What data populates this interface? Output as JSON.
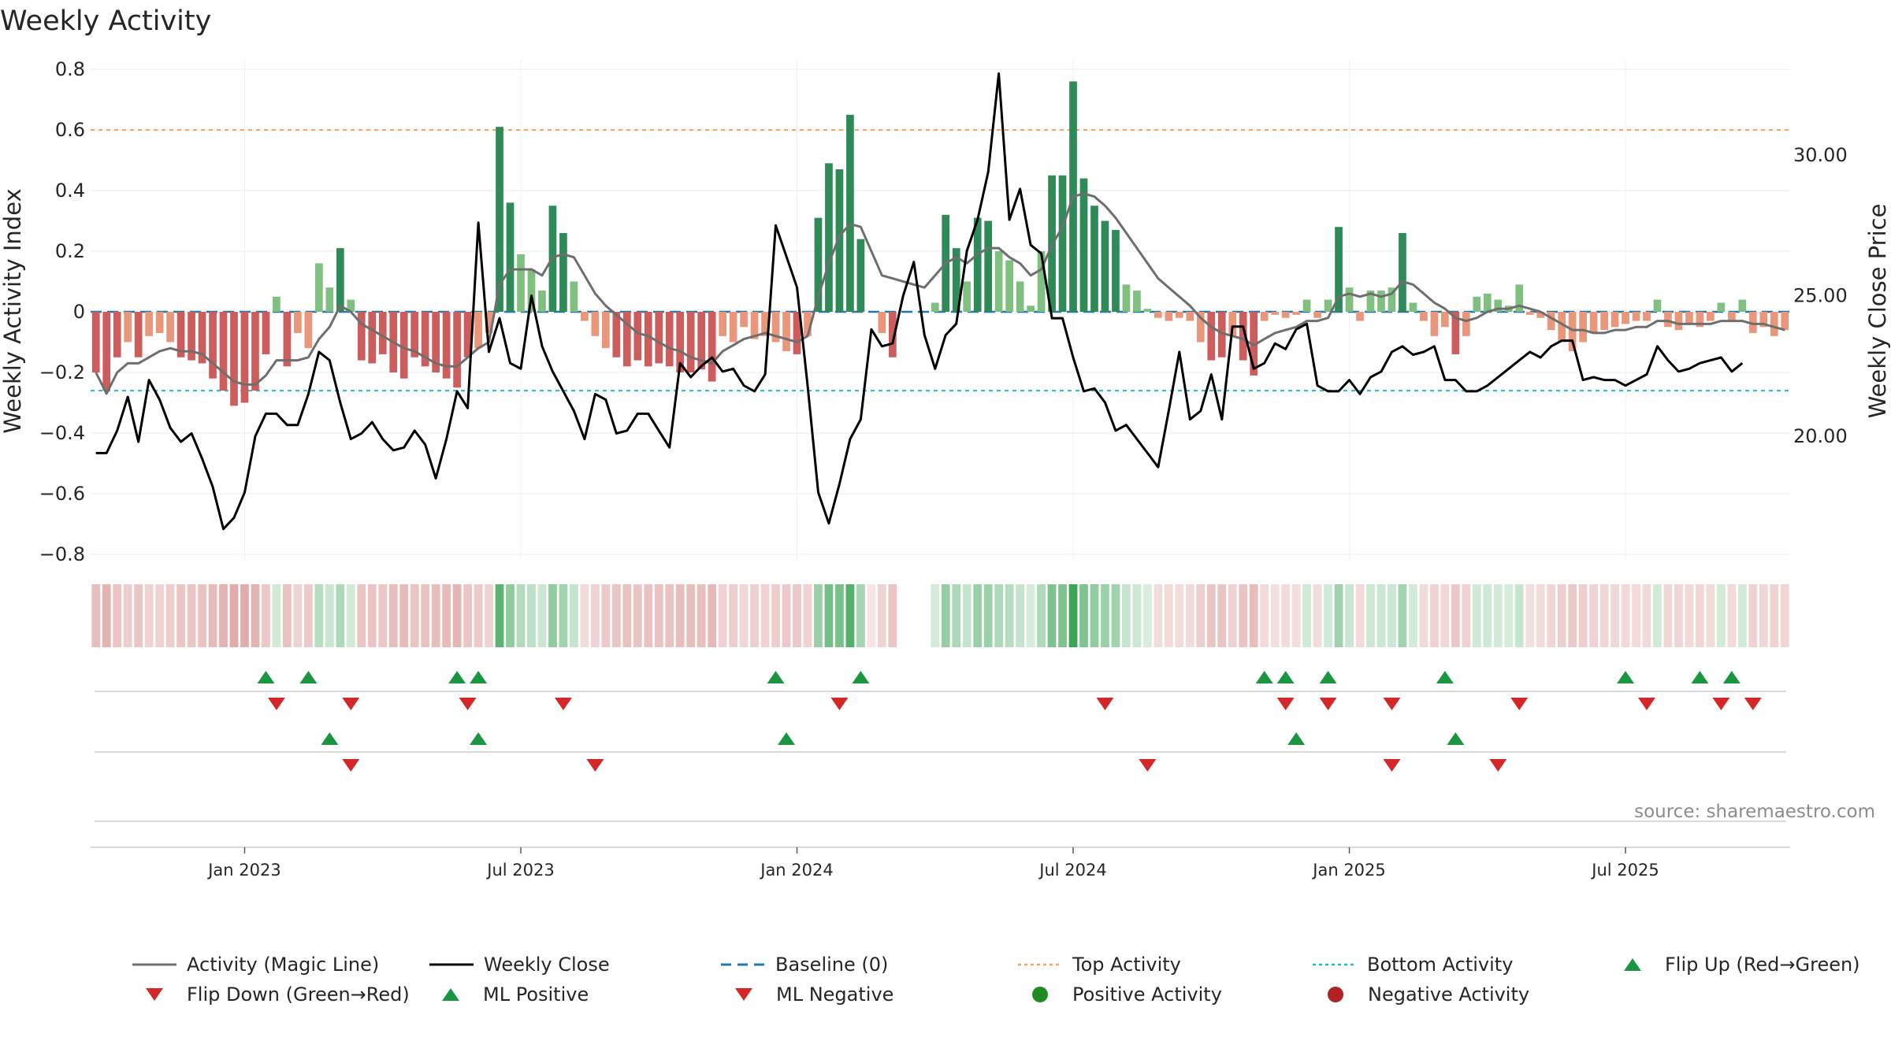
{
  "chart_data": {
    "type": "bar+line",
    "title": "Weekly Activity",
    "ylabel": "Weekly Activity Index",
    "ylabel_right": "Weekly Close Price",
    "ylim": [
      -0.9,
      0.8
    ],
    "ylim_right": [
      14.0,
      33.5
    ],
    "yticks": [
      "0.8",
      "0.6",
      "0.4",
      "0.2",
      "0",
      "−0.2",
      "−0.4",
      "−0.6",
      "−0.8"
    ],
    "yticks_right": [
      "30.00",
      "25.00",
      "20.00"
    ],
    "xtick_labels": [
      "Jan 2023",
      "Jul 2023",
      "Jan 2024",
      "Jul 2024",
      "Jan 2025",
      "Jul 2025"
    ],
    "baseline": 0,
    "top_activity": 0.6,
    "bottom_activity": -0.26,
    "source": "source: sharemaestro.com",
    "colors": {
      "strong_green": "#2e8b57",
      "light_green": "#7fbf7f",
      "strong_red": "#cd5c5c",
      "light_red": "#e9967a",
      "magic_line": "#6e6e6e",
      "close": "#000000",
      "baseline": "#1f77b4",
      "top": "#f4a460",
      "bottom": "#17becf",
      "up_marker": "#1a9641",
      "down_marker": "#d62728"
    },
    "activity": [
      -0.2,
      -0.26,
      -0.15,
      -0.1,
      -0.15,
      -0.08,
      -0.07,
      -0.1,
      -0.15,
      -0.16,
      -0.17,
      -0.22,
      -0.26,
      -0.31,
      -0.3,
      -0.26,
      -0.14,
      0.05,
      -0.18,
      -0.07,
      -0.12,
      0.16,
      0.08,
      0.21,
      0.04,
      -0.16,
      -0.17,
      -0.14,
      -0.2,
      -0.22,
      -0.15,
      -0.18,
      -0.2,
      -0.22,
      -0.25,
      -0.15,
      -0.12,
      -0.07,
      0.61,
      0.36,
      0.19,
      0.14,
      0.07,
      0.35,
      0.26,
      0.1,
      -0.03,
      -0.08,
      -0.12,
      -0.15,
      -0.18,
      -0.16,
      -0.18,
      -0.17,
      -0.18,
      -0.2,
      -0.2,
      -0.19,
      -0.23,
      -0.08,
      -0.1,
      -0.05,
      -0.09,
      -0.08,
      -0.1,
      -0.13,
      -0.14,
      -0.08,
      0.31,
      0.49,
      0.47,
      0.65,
      0.24,
      0,
      -0.07,
      -0.15,
      null,
      null,
      null,
      0.03,
      0.32,
      0.21,
      0.1,
      0.31,
      0.3,
      0.2,
      0.17,
      0.1,
      0.02,
      0.2,
      0.45,
      0.45,
      0.76,
      0.44,
      0.35,
      0.3,
      0.27,
      0.09,
      0.07,
      0.01,
      -0.02,
      -0.03,
      -0.02,
      -0.03,
      -0.1,
      -0.16,
      -0.15,
      -0.08,
      -0.16,
      -0.21,
      -0.03,
      -0.01,
      -0.02,
      -0.01,
      0.04,
      -0.02,
      0.04,
      0.28,
      0.08,
      -0.03,
      0.07,
      0.07,
      0.08,
      0.26,
      0.03,
      -0.03,
      -0.08,
      -0.05,
      -0.14,
      -0.08,
      0.05,
      0.06,
      0.04,
      0.02,
      0.09,
      -0.01,
      -0.02,
      -0.06,
      -0.1,
      -0.13,
      -0.1,
      -0.07,
      -0.06,
      -0.05,
      -0.04,
      -0.03,
      -0.03,
      0.04,
      -0.05,
      -0.06,
      -0.04,
      -0.05,
      -0.03,
      0.03,
      -0.03,
      0.04,
      -0.07,
      -0.05,
      -0.08,
      -0.06
    ],
    "magic_line": [
      -0.2,
      -0.27,
      -0.2,
      -0.17,
      -0.17,
      -0.15,
      -0.13,
      -0.12,
      -0.13,
      -0.13,
      -0.14,
      -0.17,
      -0.2,
      -0.23,
      -0.24,
      -0.24,
      -0.21,
      -0.16,
      -0.16,
      -0.16,
      -0.15,
      -0.09,
      -0.05,
      0.02,
      0.0,
      -0.04,
      -0.06,
      -0.08,
      -0.1,
      -0.12,
      -0.13,
      -0.15,
      -0.17,
      -0.18,
      -0.18,
      -0.15,
      -0.12,
      -0.1,
      0.09,
      0.14,
      0.14,
      0.14,
      0.12,
      0.18,
      0.19,
      0.18,
      0.12,
      0.06,
      0.02,
      -0.01,
      -0.04,
      -0.07,
      -0.08,
      -0.1,
      -0.12,
      -0.13,
      -0.15,
      -0.16,
      -0.17,
      -0.13,
      -0.11,
      -0.09,
      -0.08,
      -0.07,
      -0.08,
      -0.09,
      -0.1,
      -0.08,
      0.05,
      0.16,
      0.25,
      0.29,
      0.28,
      0.2,
      0.12,
      0.11,
      0.1,
      0.09,
      0.08,
      0.12,
      0.16,
      0.18,
      0.16,
      0.19,
      0.21,
      0.21,
      0.18,
      0.16,
      0.12,
      0.14,
      0.22,
      0.28,
      0.38,
      0.39,
      0.38,
      0.35,
      0.31,
      0.26,
      0.21,
      0.16,
      0.11,
      0.08,
      0.05,
      0.02,
      -0.02,
      -0.05,
      -0.07,
      -0.08,
      -0.09,
      -0.11,
      -0.09,
      -0.07,
      -0.06,
      -0.05,
      -0.03,
      -0.03,
      -0.02,
      0.05,
      0.06,
      0.05,
      0.06,
      0.05,
      0.06,
      0.1,
      0.09,
      0.06,
      0.03,
      0.01,
      -0.02,
      -0.03,
      -0.02,
      0.0,
      0.01,
      0.01,
      0.02,
      0.01,
      0.0,
      -0.02,
      -0.04,
      -0.06,
      -0.06,
      -0.07,
      -0.07,
      -0.06,
      -0.06,
      -0.05,
      -0.05,
      -0.03,
      -0.03,
      -0.04,
      -0.04,
      -0.04,
      -0.04,
      -0.03,
      -0.03,
      -0.03,
      -0.04,
      -0.04,
      -0.05,
      -0.06
    ],
    "close": [
      19.4,
      19.4,
      20.2,
      21.4,
      19.8,
      22.0,
      21.3,
      20.3,
      19.8,
      20.1,
      19.2,
      18.2,
      16.7,
      17.1,
      18.0,
      20.0,
      20.8,
      20.8,
      20.4,
      20.4,
      21.5,
      23.0,
      22.7,
      21.2,
      19.9,
      20.1,
      20.5,
      19.9,
      19.5,
      19.6,
      20.2,
      19.7,
      18.5,
      19.9,
      21.6,
      21.0,
      27.6,
      23.0,
      24.2,
      22.6,
      22.4,
      25.0,
      23.2,
      22.3,
      21.6,
      20.9,
      19.9,
      21.5,
      21.3,
      20.1,
      20.2,
      20.8,
      20.8,
      20.2,
      19.6,
      22.6,
      22.1,
      22.5,
      22.8,
      22.3,
      22.4,
      21.8,
      21.6,
      22.2,
      27.5,
      26.4,
      25.3,
      21.8,
      18.0,
      16.9,
      18.3,
      19.9,
      20.6,
      23.8,
      23.2,
      23.3,
      25.0,
      26.2,
      23.6,
      22.4,
      23.6,
      24.0,
      26.6,
      27.7,
      29.4,
      32.9,
      27.7,
      28.8,
      26.8,
      26.5,
      24.2,
      24.2,
      22.8,
      21.6,
      21.7,
      21.2,
      20.2,
      20.4,
      19.9,
      19.4,
      18.9,
      20.9,
      23.0,
      20.6,
      20.9,
      22.2,
      20.6,
      23.9,
      23.9,
      22.4,
      22.6,
      23.3,
      23.1,
      23.8,
      24.0,
      21.8,
      21.6,
      21.6,
      22.0,
      21.5,
      22.1,
      22.3,
      23.0,
      23.2,
      22.9,
      23.0,
      23.2,
      22.0,
      22.0,
      21.6,
      21.6,
      21.8,
      22.1,
      22.4,
      22.7,
      23.0,
      22.8,
      23.2,
      23.4,
      23.4,
      22.0,
      22.1,
      22.0,
      22.0,
      21.8,
      22.0,
      22.2,
      23.2,
      22.7,
      22.3,
      22.4,
      22.6,
      22.7,
      22.8,
      22.3,
      22.6
    ],
    "flip_up": [
      16,
      20,
      34,
      36,
      64,
      72,
      110,
      112,
      116,
      127,
      144,
      151,
      154
    ],
    "flip_down": [
      17,
      24,
      35,
      44,
      70,
      95,
      112,
      116,
      122,
      134,
      146,
      153,
      156
    ],
    "ml_positive": [
      22,
      36,
      65,
      113,
      128
    ],
    "ml_negative": [
      24,
      47,
      99,
      122,
      132
    ],
    "legend": [
      {
        "label": "Activity (Magic Line)",
        "kind": "line",
        "color": "#6e6e6e"
      },
      {
        "label": "Weekly Close",
        "kind": "line",
        "color": "#000000"
      },
      {
        "label": "Baseline (0)",
        "kind": "dash",
        "color": "#1f77b4"
      },
      {
        "label": "Top Activity",
        "kind": "dot",
        "color": "#f4a460"
      },
      {
        "label": "Bottom Activity",
        "kind": "dot",
        "color": "#17becf"
      },
      {
        "label": "Flip Up (Red→Green)",
        "kind": "up",
        "color": "#1a9641"
      },
      {
        "label": "Flip Down (Green→Red)",
        "kind": "down",
        "color": "#d62728"
      },
      {
        "label": "ML Positive",
        "kind": "up",
        "color": "#1a9641"
      },
      {
        "label": "ML Negative",
        "kind": "down",
        "color": "#d62728"
      },
      {
        "label": "Positive Activity",
        "kind": "circle",
        "color": "#228b22"
      },
      {
        "label": "Negative Activity",
        "kind": "circle",
        "color": "#b22222"
      }
    ]
  }
}
